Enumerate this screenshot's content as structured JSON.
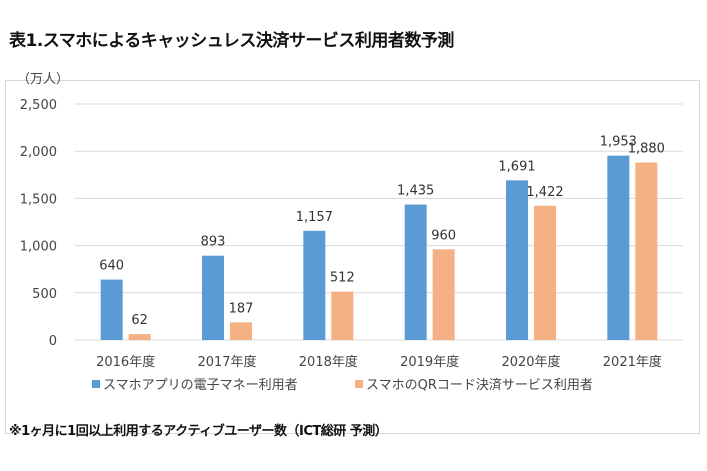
{
  "title": "表1.スマホによるキャッシュレス決済サービス利用者数予測",
  "note": "※1ヶ月に1回以上利用するアクティブユーザー数（ICT総研 予測）",
  "chart_data": {
    "type": "bar",
    "ylabel": "（万人）",
    "ylim": [
      0,
      2500
    ],
    "yticks": [
      "0",
      "500",
      "1,000",
      "1,500",
      "2,000",
      "2,500"
    ],
    "grid": true,
    "legend": "bottom",
    "categories": [
      "2016年度",
      "2017年度",
      "2018年度",
      "2019年度",
      "2020年度",
      "2021年度"
    ],
    "series": [
      {
        "name": "スマホアプリの電子マネー利用者",
        "color": "#5B9BD5",
        "values": [
          640,
          893,
          1157,
          1435,
          1691,
          1953
        ],
        "labels": [
          "640",
          "893",
          "1,157",
          "1,435",
          "1,691",
          "1,953"
        ]
      },
      {
        "name": "スマホのQRコード決済サービス利用者",
        "color": "#F4B183",
        "values": [
          62,
          187,
          512,
          960,
          1422,
          1880
        ],
        "labels": [
          "62",
          "187",
          "512",
          "960",
          "1,422",
          "1,880"
        ]
      }
    ]
  }
}
